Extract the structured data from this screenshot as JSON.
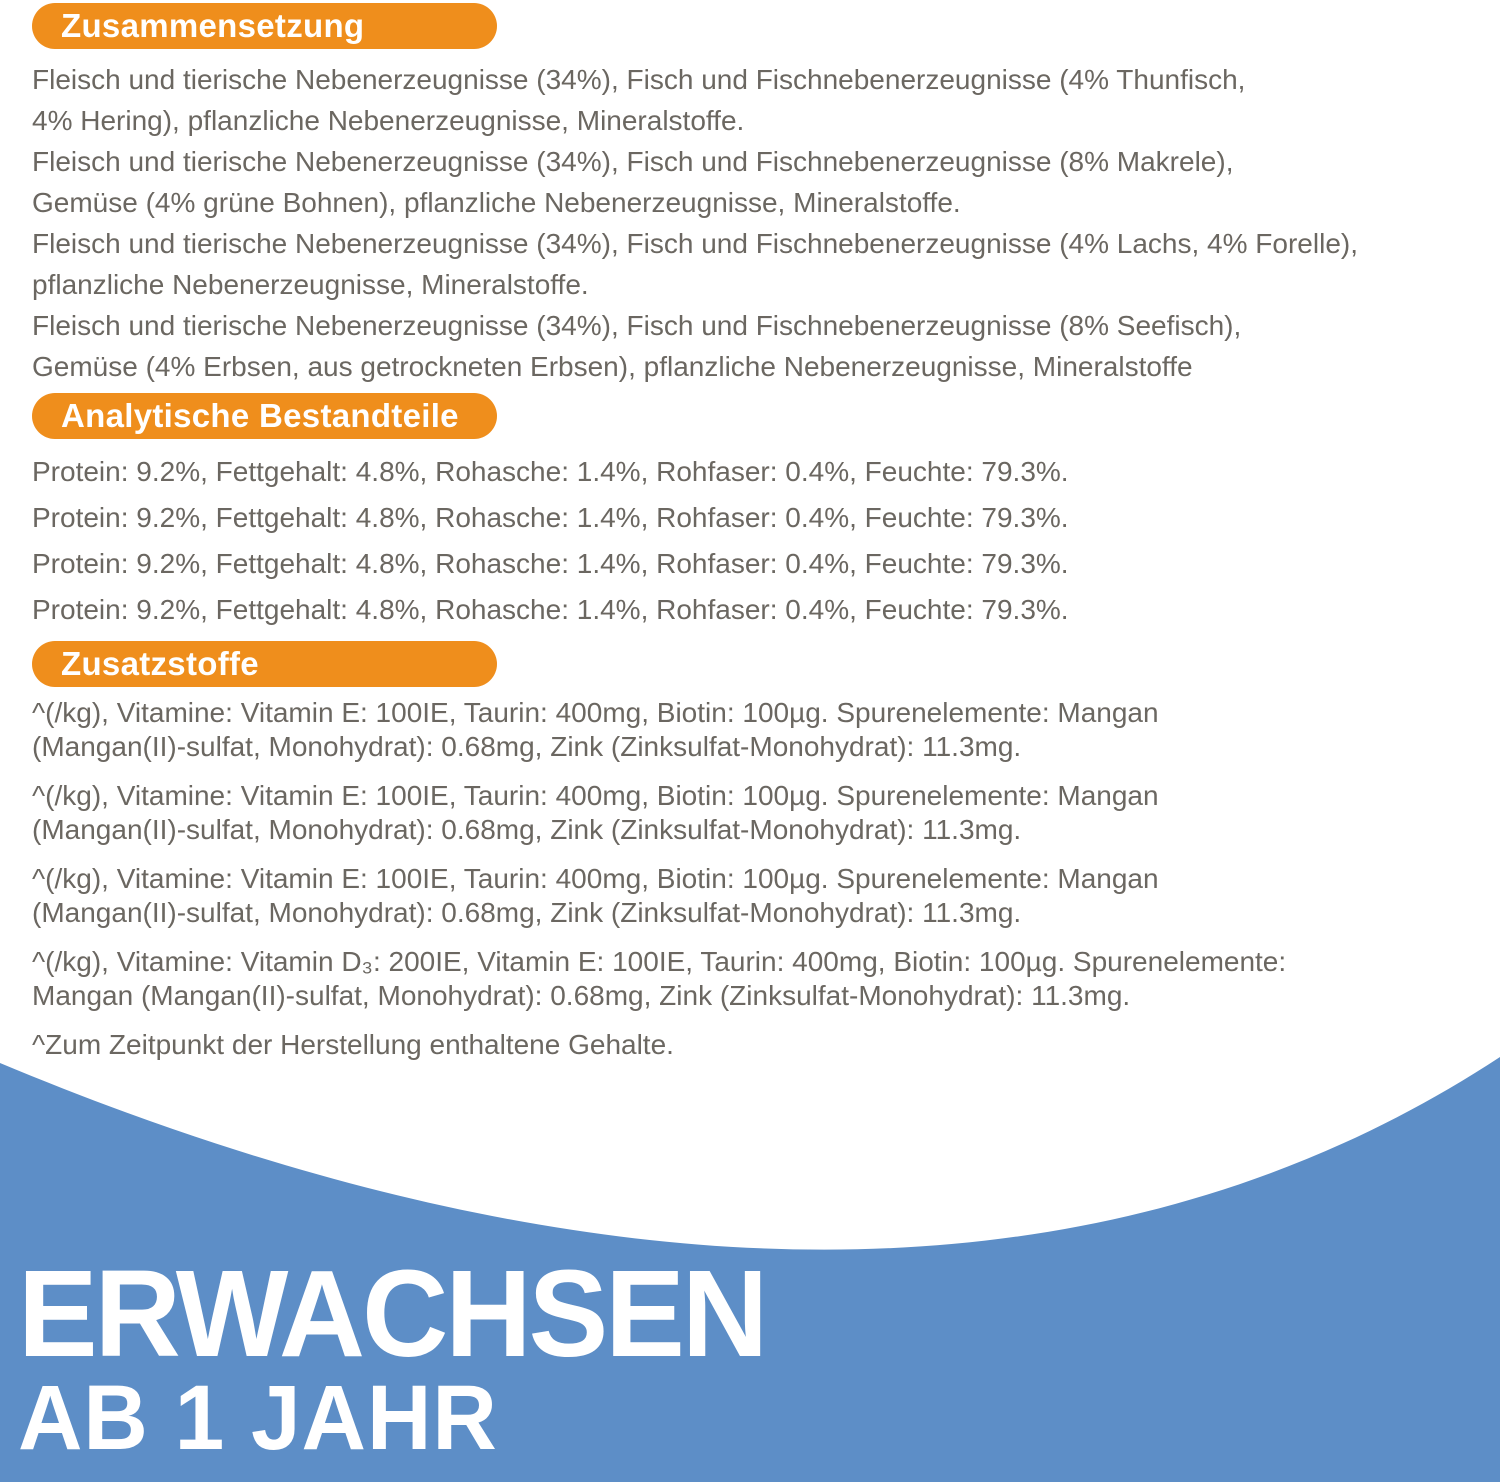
{
  "colors": {
    "accent_orange": "#EF8E1C",
    "banner_blue": "#5D8EC7",
    "body_text": "#6B6761",
    "heading_text": "#FFFFFF",
    "banner_text": "#FFFFFF",
    "background": "#FFFFFF"
  },
  "sections": [
    {
      "heading": "Zusammensetzung",
      "paragraphs": [
        {
          "lines": [
            "Fleisch und tierische Nebenerzeugnisse (34%), Fisch und Fischnebenerzeugnisse (4% Thunfisch,",
            "4% Hering), pflanzliche Nebenerzeugnisse, Mineralstoffe."
          ]
        },
        {
          "lines": [
            "Fleisch und tierische Nebenerzeugnisse (34%), Fisch und Fischnebenerzeugnisse (8% Makrele),",
            "Gemüse (4% grüne Bohnen), pflanzliche Nebenerzeugnisse, Mineralstoffe."
          ]
        },
        {
          "lines": [
            "Fleisch und tierische Nebenerzeugnisse (34%), Fisch und Fischnebenerzeugnisse (4% Lachs, 4% Forelle),",
            "pflanzliche Nebenerzeugnisse, Mineralstoffe."
          ]
        },
        {
          "lines": [
            "Fleisch und tierische Nebenerzeugnisse (34%), Fisch und Fischnebenerzeugnisse (8% Seefisch),",
            "Gemüse (4% Erbsen, aus getrockneten Erbsen), pflanzliche Nebenerzeugnisse, Mineralstoffe"
          ]
        }
      ]
    },
    {
      "heading": "Analytische Bestandteile",
      "paragraphs": [
        {
          "lines": [
            "Protein: 9.2%, Fettgehalt: 4.8%, Rohasche: 1.4%, Rohfaser: 0.4%, Feuchte: 79.3%."
          ]
        },
        {
          "lines": [
            "Protein: 9.2%, Fettgehalt: 4.8%, Rohasche: 1.4%, Rohfaser: 0.4%, Feuchte: 79.3%."
          ]
        },
        {
          "lines": [
            "Protein: 9.2%, Fettgehalt: 4.8%, Rohasche: 1.4%, Rohfaser: 0.4%, Feuchte: 79.3%."
          ]
        },
        {
          "lines": [
            "Protein: 9.2%, Fettgehalt: 4.8%, Rohasche: 1.4%, Rohfaser: 0.4%, Feuchte: 79.3%."
          ]
        }
      ]
    },
    {
      "heading": "Zusatzstoffe",
      "paragraphs": [
        {
          "lines": [
            "^(/kg), Vitamine: Vitamin E: 100IE, Taurin: 400mg, Biotin: 100µg. Spurenelemente: Mangan",
            "(Mangan(II)-sulfat, Monohydrat): 0.68mg, Zink (Zinksulfat-Monohydrat): 11.3mg."
          ]
        },
        {
          "lines": [
            "^(/kg), Vitamine: Vitamin E: 100IE, Taurin: 400mg, Biotin: 100µg. Spurenelemente: Mangan",
            "(Mangan(II)-sulfat, Monohydrat): 0.68mg, Zink (Zinksulfat-Monohydrat): 11.3mg."
          ]
        },
        {
          "lines": [
            "^(/kg), Vitamine: Vitamin E: 100IE, Taurin: 400mg, Biotin: 100µg. Spurenelemente: Mangan",
            "(Mangan(II)-sulfat, Monohydrat): 0.68mg, Zink (Zinksulfat-Monohydrat): 11.3mg."
          ]
        },
        {
          "lines": [
            "^(/kg), Vitamine: Vitamin D₃: 200IE, Vitamin E: 100IE, Taurin: 400mg, Biotin: 100µg. Spurenelemente:",
            "Mangan (Mangan(II)-sulfat, Monohydrat): 0.68mg, Zink (Zinksulfat-Monohydrat): 11.3mg."
          ]
        }
      ]
    }
  ],
  "footnote": "^Zum Zeitpunkt der Herstellung enthaltene Gehalte.",
  "banner": {
    "title": "ERWACHSEN",
    "subtitle": "AB 1 JAHR"
  }
}
